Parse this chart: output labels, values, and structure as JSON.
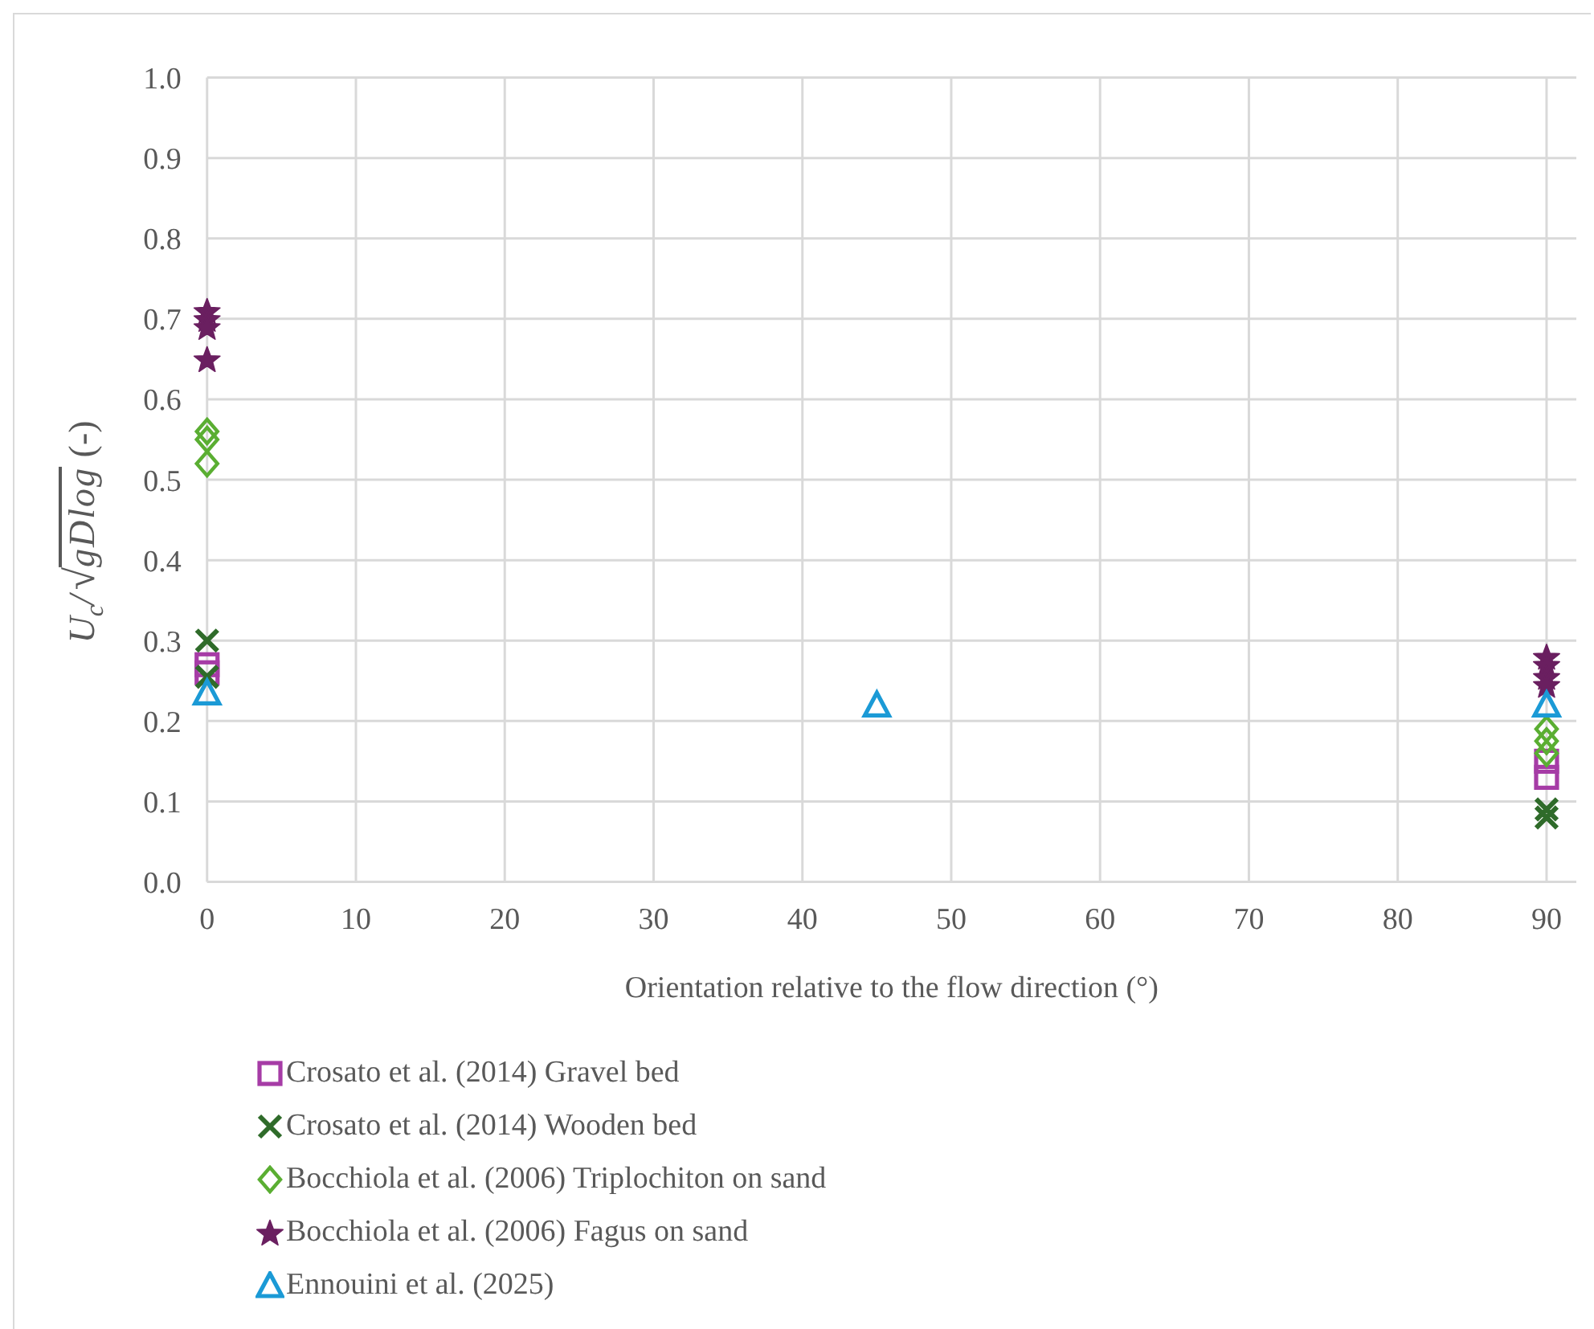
{
  "chart_data": {
    "type": "scatter",
    "xlabel": "Orientation relative to the flow direction (°)",
    "ylabel": "U$_{c}$/√gDlog (-)",
    "xlim": [
      0,
      92
    ],
    "xticks": [
      0,
      10,
      20,
      30,
      40,
      50,
      60,
      70,
      80,
      90
    ],
    "ylim": [
      0,
      1
    ],
    "yticks": [
      {
        "value": 0,
        "label": "0.0"
      },
      0.1,
      0.2,
      0.3,
      0.4,
      0.5,
      0.6,
      0.7,
      0.8,
      0.9,
      {
        "value": 1,
        "label": "1.0"
      }
    ],
    "grid": true,
    "legend": "bottom",
    "series": [
      {
        "name": "Crosato et al. (2014) Gravel bed",
        "color": "#a63ca6",
        "marker": "square",
        "x": [
          0,
          0,
          90,
          90
        ],
        "values": [
          0.27,
          0.26,
          0.15,
          0.13
        ]
      },
      {
        "name": "Crosato et al. (2014) Wooden bed",
        "color": "#2f6b2a",
        "marker": "cross",
        "x": [
          0,
          0,
          90,
          90
        ],
        "values": [
          0.3,
          0.255,
          0.09,
          0.08
        ]
      },
      {
        "name": "Bocchiola et al. (2006) Triplochiton on sand",
        "color": "#5aae32",
        "marker": "diamond",
        "x": [
          0,
          0,
          0,
          90,
          90,
          90
        ],
        "values": [
          0.56,
          0.55,
          0.52,
          0.19,
          0.175,
          0.16
        ]
      },
      {
        "name": "Bocchiola et al. (2006) Fagus on sand",
        "color": "#6a1f60",
        "marker": "star",
        "x": [
          0,
          0,
          0,
          0,
          90,
          90,
          90,
          90
        ],
        "values": [
          0.71,
          0.7,
          0.69,
          0.65,
          0.28,
          0.27,
          0.255,
          0.245
        ]
      },
      {
        "name": "Ennouini et al. (2025)",
        "color": "#1b9ad6",
        "marker": "triangle",
        "x": [
          0,
          45,
          90
        ],
        "values": [
          0.235,
          0.22,
          0.22
        ]
      }
    ]
  }
}
